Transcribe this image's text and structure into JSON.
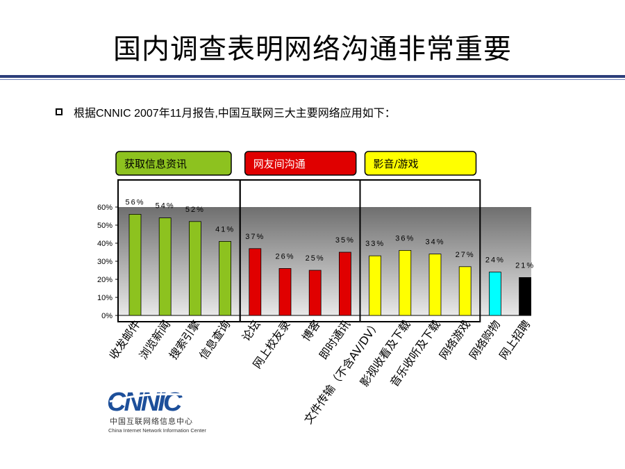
{
  "slide": {
    "title": "国内调查表明网络沟通非常重要",
    "bullet": "根据CNNIC 2007年11月报告,中国互联网三大主要网络应用如下："
  },
  "logo": {
    "mark": "CNNIC",
    "cn_name": "中国互联网络信息中心",
    "en_name": "China Internet Network Information Center"
  },
  "chart_data": {
    "type": "bar",
    "categories": [
      "收发邮件",
      "浏览新闻",
      "搜索引擎",
      "信息查询",
      "论坛",
      "网上校友录",
      "博客",
      "即时通讯",
      "文件传输（不含AV/DV）",
      "影视收看及下载",
      "音乐收听及下载",
      "网络游戏",
      "网络购物",
      "网上招聘"
    ],
    "values": [
      56,
      54,
      52,
      41,
      37,
      26,
      25,
      35,
      33,
      36,
      34,
      27,
      24,
      21
    ],
    "data_labels": [
      "56%",
      "54%",
      "52%",
      "41%",
      "37%",
      "26%",
      "25%",
      "35%",
      "33%",
      "36%",
      "34%",
      "27%",
      "24%",
      "21%"
    ],
    "bar_colors": [
      "#8dc21f",
      "#8dc21f",
      "#8dc21f",
      "#8dc21f",
      "#e00000",
      "#e00000",
      "#e00000",
      "#e00000",
      "#ffff00",
      "#ffff00",
      "#ffff00",
      "#ffff00",
      "#00ffff",
      "#000000"
    ],
    "ylim": [
      0,
      60
    ],
    "yticks": [
      0,
      10,
      20,
      30,
      40,
      50,
      60
    ],
    "ytick_labels": [
      "0%",
      "10%",
      "20%",
      "30%",
      "40%",
      "50%",
      "60%"
    ],
    "groups": [
      {
        "label": "获取信息资讯",
        "color": "#8dc21f",
        "first": 0,
        "last": 3
      },
      {
        "label": "网友间沟通",
        "color": "#e00000",
        "first": 4,
        "last": 7
      },
      {
        "label": "影音/游戏",
        "color": "#ffff00",
        "first": 8,
        "last": 11
      }
    ],
    "plot_background": "#aaaaaa"
  }
}
